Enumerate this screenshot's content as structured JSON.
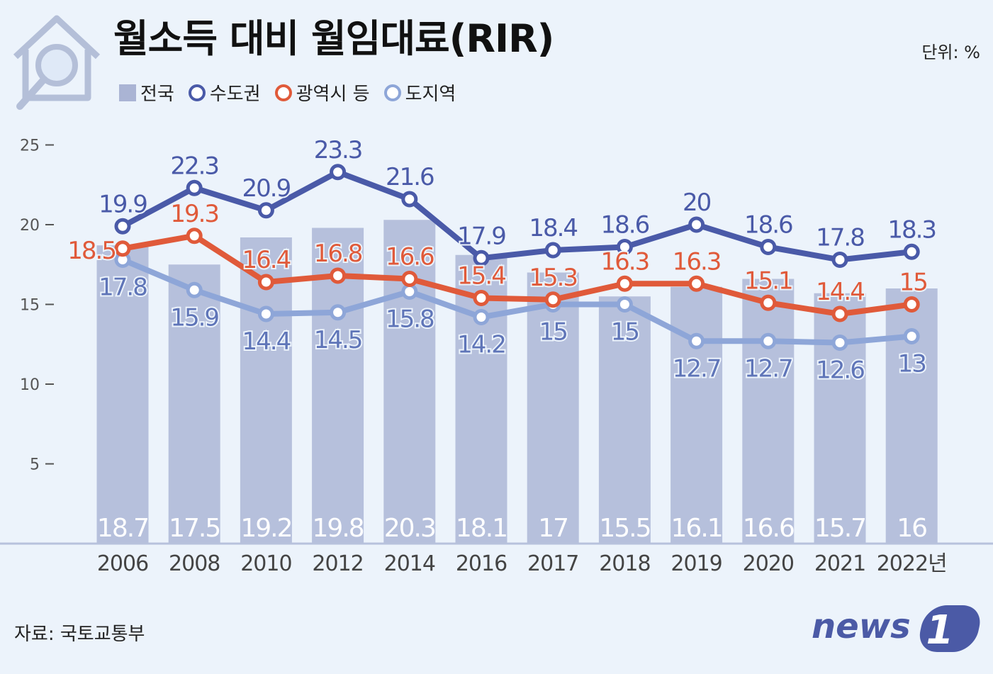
{
  "header": {
    "title": "월소득 대비 월임대료(RIR)",
    "unit": "단위: %"
  },
  "legend": [
    {
      "label": "전국",
      "style": "bar",
      "color": "#aab4d4"
    },
    {
      "label": "수도권",
      "style": "ring",
      "color": "#4a5aa8"
    },
    {
      "label": "광역시 등",
      "style": "ring",
      "color": "#e05a3a"
    },
    {
      "label": "도지역",
      "style": "ring",
      "color": "#8ea6d8"
    }
  ],
  "chart_data": {
    "type": "bar+line",
    "title": "월소득 대비 월임대료(RIR)",
    "categories": [
      "2006",
      "2008",
      "2010",
      "2012",
      "2014",
      "2016",
      "2017",
      "2018",
      "2019",
      "2020",
      "2021",
      "2022년"
    ],
    "ylim": [
      0,
      25
    ],
    "yticks": [
      5,
      10,
      15,
      20,
      25
    ],
    "bar_series": {
      "name": "전국",
      "color": "#aab4d4",
      "values": [
        18.7,
        17.5,
        19.2,
        19.8,
        20.3,
        18.1,
        17,
        15.5,
        16.1,
        16.6,
        15.7,
        16
      ]
    },
    "line_series": [
      {
        "name": "수도권",
        "color": "#4a5aa8",
        "label_color": "#4a5aa8",
        "values": [
          19.9,
          22.3,
          20.9,
          23.3,
          21.6,
          17.9,
          18.4,
          18.6,
          20,
          18.6,
          17.8,
          18.3
        ],
        "label_pos": "above"
      },
      {
        "name": "광역시 등",
        "color": "#e05a3a",
        "label_color": "#e05a3a",
        "values": [
          18.5,
          19.3,
          16.4,
          16.8,
          16.6,
          15.4,
          15.3,
          16.3,
          16.3,
          15.1,
          14.4,
          15
        ],
        "label_pos": "above"
      },
      {
        "name": "도지역",
        "color": "#8ea6d8",
        "label_color": "#5f75b8",
        "values": [
          17.8,
          15.9,
          14.4,
          14.5,
          15.8,
          14.2,
          15,
          15,
          12.7,
          12.7,
          12.6,
          13
        ],
        "label_pos": "below"
      }
    ]
  },
  "footer": {
    "source": "자료: 국토교통부",
    "logo_text": "news",
    "logo_mark": "1"
  }
}
